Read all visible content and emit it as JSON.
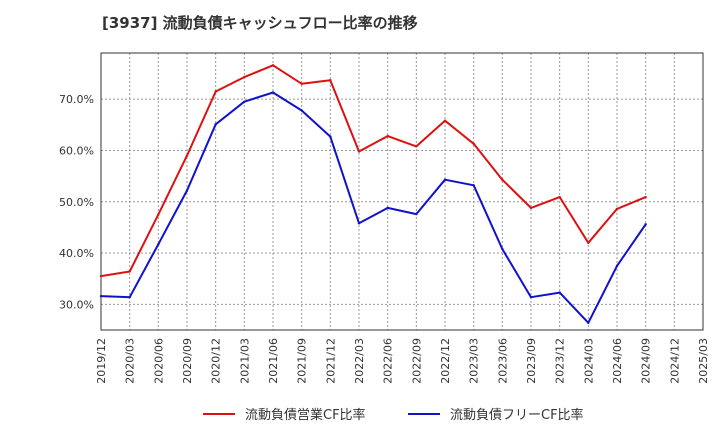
{
  "chart_data": {
    "type": "line",
    "title": "[3937]  流動負債キャッシュフロー比率の推移",
    "xlabel": "",
    "ylabel": "",
    "categories": [
      "2019/12",
      "2020/03",
      "2020/06",
      "2020/09",
      "2020/12",
      "2021/03",
      "2021/06",
      "2021/09",
      "2021/12",
      "2022/03",
      "2022/06",
      "2022/09",
      "2022/12",
      "2023/03",
      "2023/06",
      "2023/09",
      "2023/12",
      "2024/03",
      "2024/06",
      "2024/09",
      "2024/12",
      "2025/03"
    ],
    "ylim": [
      25,
      79
    ],
    "yticks": [
      30,
      40,
      50,
      60,
      70
    ],
    "ytick_labels": [
      "30.0%",
      "40.0%",
      "50.0%",
      "60.0%",
      "70.0%"
    ],
    "grid": true,
    "legend_position": "bottom",
    "series": [
      {
        "name": "流動負債営業CF比率",
        "color": "#dd1111",
        "values": [
          35.5,
          36.4,
          47.5,
          59.0,
          71.5,
          74.3,
          76.6,
          73.0,
          73.7,
          59.8,
          62.8,
          60.8,
          65.8,
          61.3,
          54.3,
          48.8,
          50.9,
          42.0,
          48.6,
          50.9,
          null,
          null
        ]
      },
      {
        "name": "流動負債フリーCF比率",
        "color": "#1111cc",
        "values": [
          31.6,
          31.4,
          41.7,
          52.2,
          65.1,
          69.5,
          71.3,
          67.8,
          62.7,
          45.8,
          48.8,
          47.6,
          54.3,
          53.2,
          40.8,
          31.4,
          32.3,
          26.4,
          37.5,
          45.6,
          null,
          null
        ]
      }
    ]
  }
}
